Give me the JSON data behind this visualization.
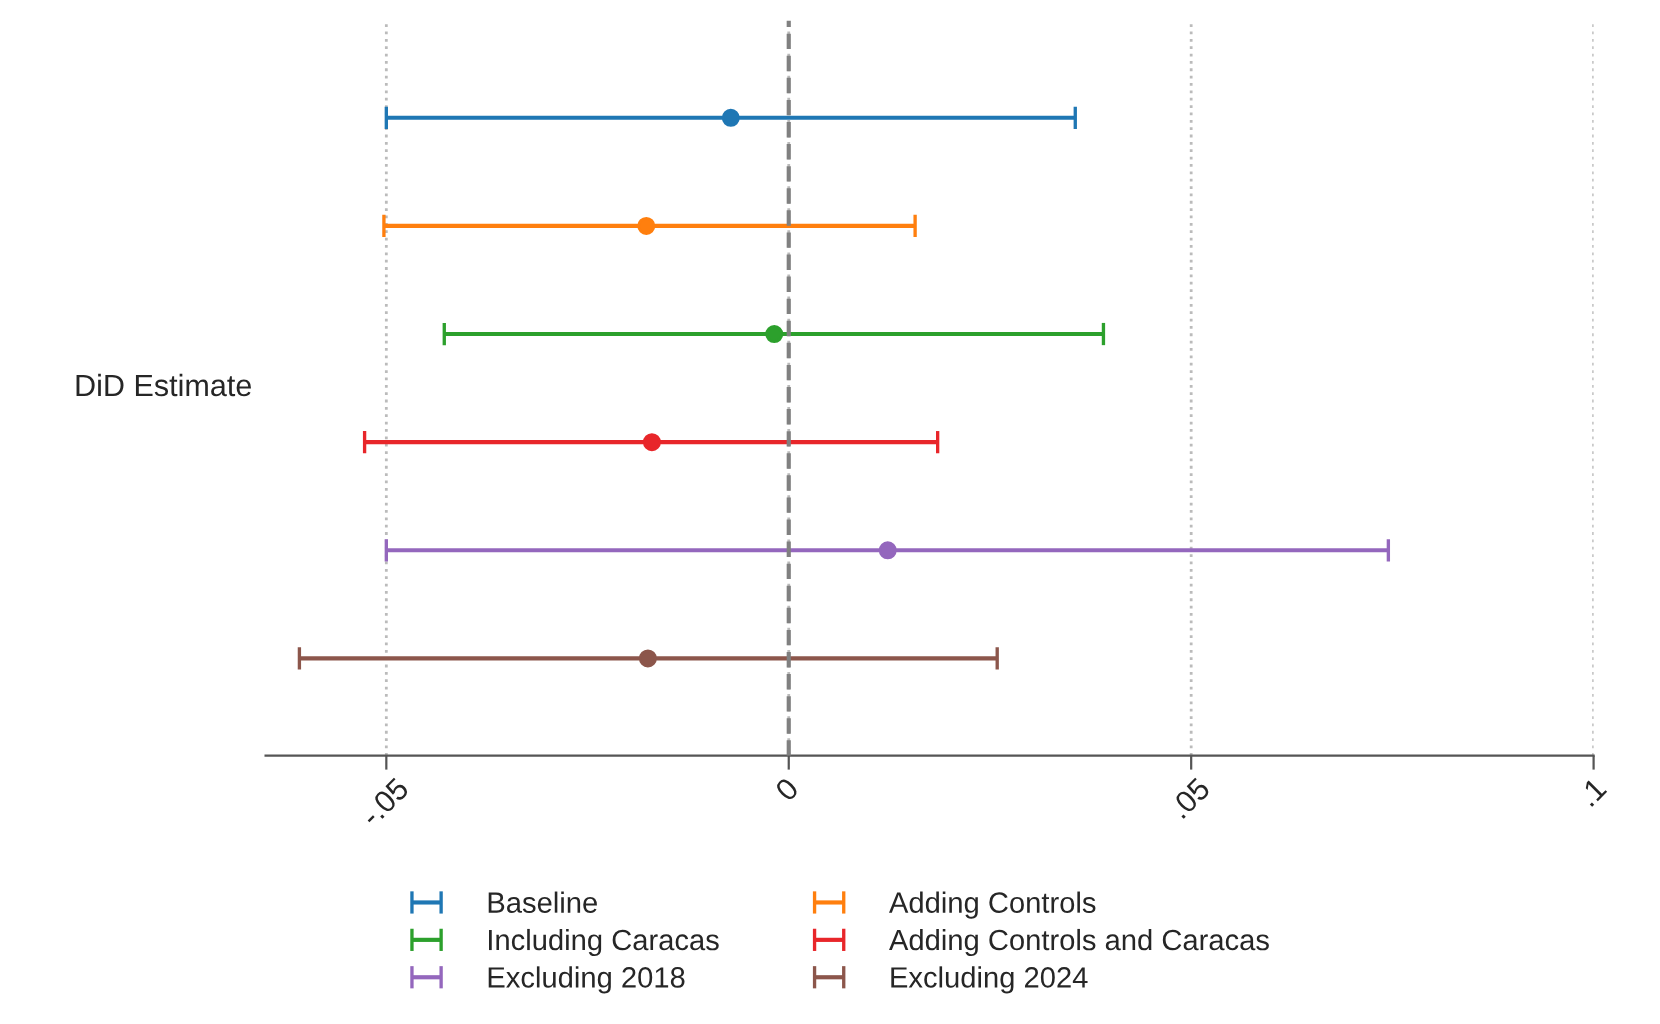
{
  "chart_data": {
    "type": "scatter",
    "orientation": "horizontal",
    "ylabel": "DiD Estimate",
    "categories": [
      null,
      null,
      null,
      null,
      null,
      null
    ],
    "series": [
      {
        "name": "Baseline",
        "color": "#1f77b4",
        "values": [
          -0.0072,
          null,
          null,
          null,
          null,
          null
        ],
        "errors": [
          [
            -0.05,
            0.0356
          ],
          null,
          null,
          null,
          null,
          null
        ]
      },
      {
        "name": "Adding Controls",
        "color": "#ff7f0e",
        "values": [
          null,
          -0.0177,
          null,
          null,
          null,
          null
        ],
        "errors": [
          null,
          [
            -0.0503,
            0.0157
          ],
          null,
          null,
          null,
          null
        ]
      },
      {
        "name": "Including Caracas",
        "color": "#2ca02c",
        "values": [
          null,
          null,
          -0.0018,
          null,
          null,
          null
        ],
        "errors": [
          null,
          null,
          [
            -0.0428,
            0.0391
          ],
          null,
          null,
          null
        ]
      },
      {
        "name": "Adding Controls and Caracas",
        "color": "#e8262a",
        "values": [
          null,
          null,
          null,
          -0.017,
          null,
          null
        ],
        "errors": [
          null,
          null,
          null,
          [
            -0.0527,
            0.0185
          ],
          null,
          null
        ]
      },
      {
        "name": "Excluding 2018",
        "color": "#9467bd",
        "values": [
          null,
          null,
          null,
          null,
          0.0123,
          null
        ],
        "errors": [
          null,
          null,
          null,
          null,
          [
            -0.05,
            0.0745
          ],
          null
        ]
      },
      {
        "name": "Excluding 2024",
        "color": "#8c564b",
        "values": [
          null,
          null,
          null,
          null,
          null,
          -0.0175
        ],
        "errors": [
          null,
          null,
          null,
          null,
          null,
          [
            -0.0608,
            0.0259
          ]
        ]
      }
    ],
    "xlim": [
      -0.065,
      0.1
    ],
    "xticks": [
      {
        "value": -0.05,
        "label": "-.05"
      },
      {
        "value": 0,
        "label": "0"
      },
      {
        "value": 0.05,
        "label": ".05"
      },
      {
        "value": 0.1,
        "label": ".1"
      }
    ],
    "grid": "x",
    "marker": "circle",
    "legend": "bottom",
    "ref_lines": [
      {
        "axis": "x",
        "value": 0,
        "color": "#808080",
        "line_style": "dashed"
      }
    ]
  }
}
